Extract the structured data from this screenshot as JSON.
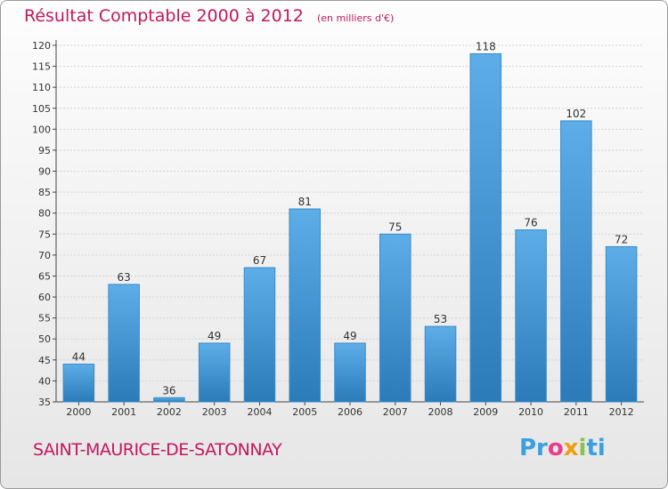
{
  "title": "Résultat Comptable 2000 à 2012",
  "unit": "(en milliers d'€)",
  "commune": "SAINT-MAURICE-DE-SATONNAY",
  "logo": {
    "p1": "Pr",
    "p2": "o",
    "p3": "x",
    "p4": "i",
    "p5": "ti"
  },
  "colors": {
    "bar_top": "#5dade8",
    "bar_bottom": "#2b7bb9",
    "title": "#c2185b"
  },
  "chart_data": {
    "type": "bar",
    "categories": [
      "2000",
      "2001",
      "2002",
      "2003",
      "2004",
      "2005",
      "2006",
      "2007",
      "2008",
      "2009",
      "2010",
      "2011",
      "2012"
    ],
    "values": [
      44,
      63,
      36,
      49,
      67,
      81,
      49,
      75,
      53,
      118,
      76,
      102,
      72
    ],
    "ylim": [
      35,
      120
    ],
    "yticks": [
      35,
      40,
      45,
      50,
      55,
      60,
      65,
      70,
      75,
      80,
      85,
      90,
      95,
      100,
      105,
      110,
      115,
      120
    ],
    "grid": true,
    "data_labels": true
  }
}
